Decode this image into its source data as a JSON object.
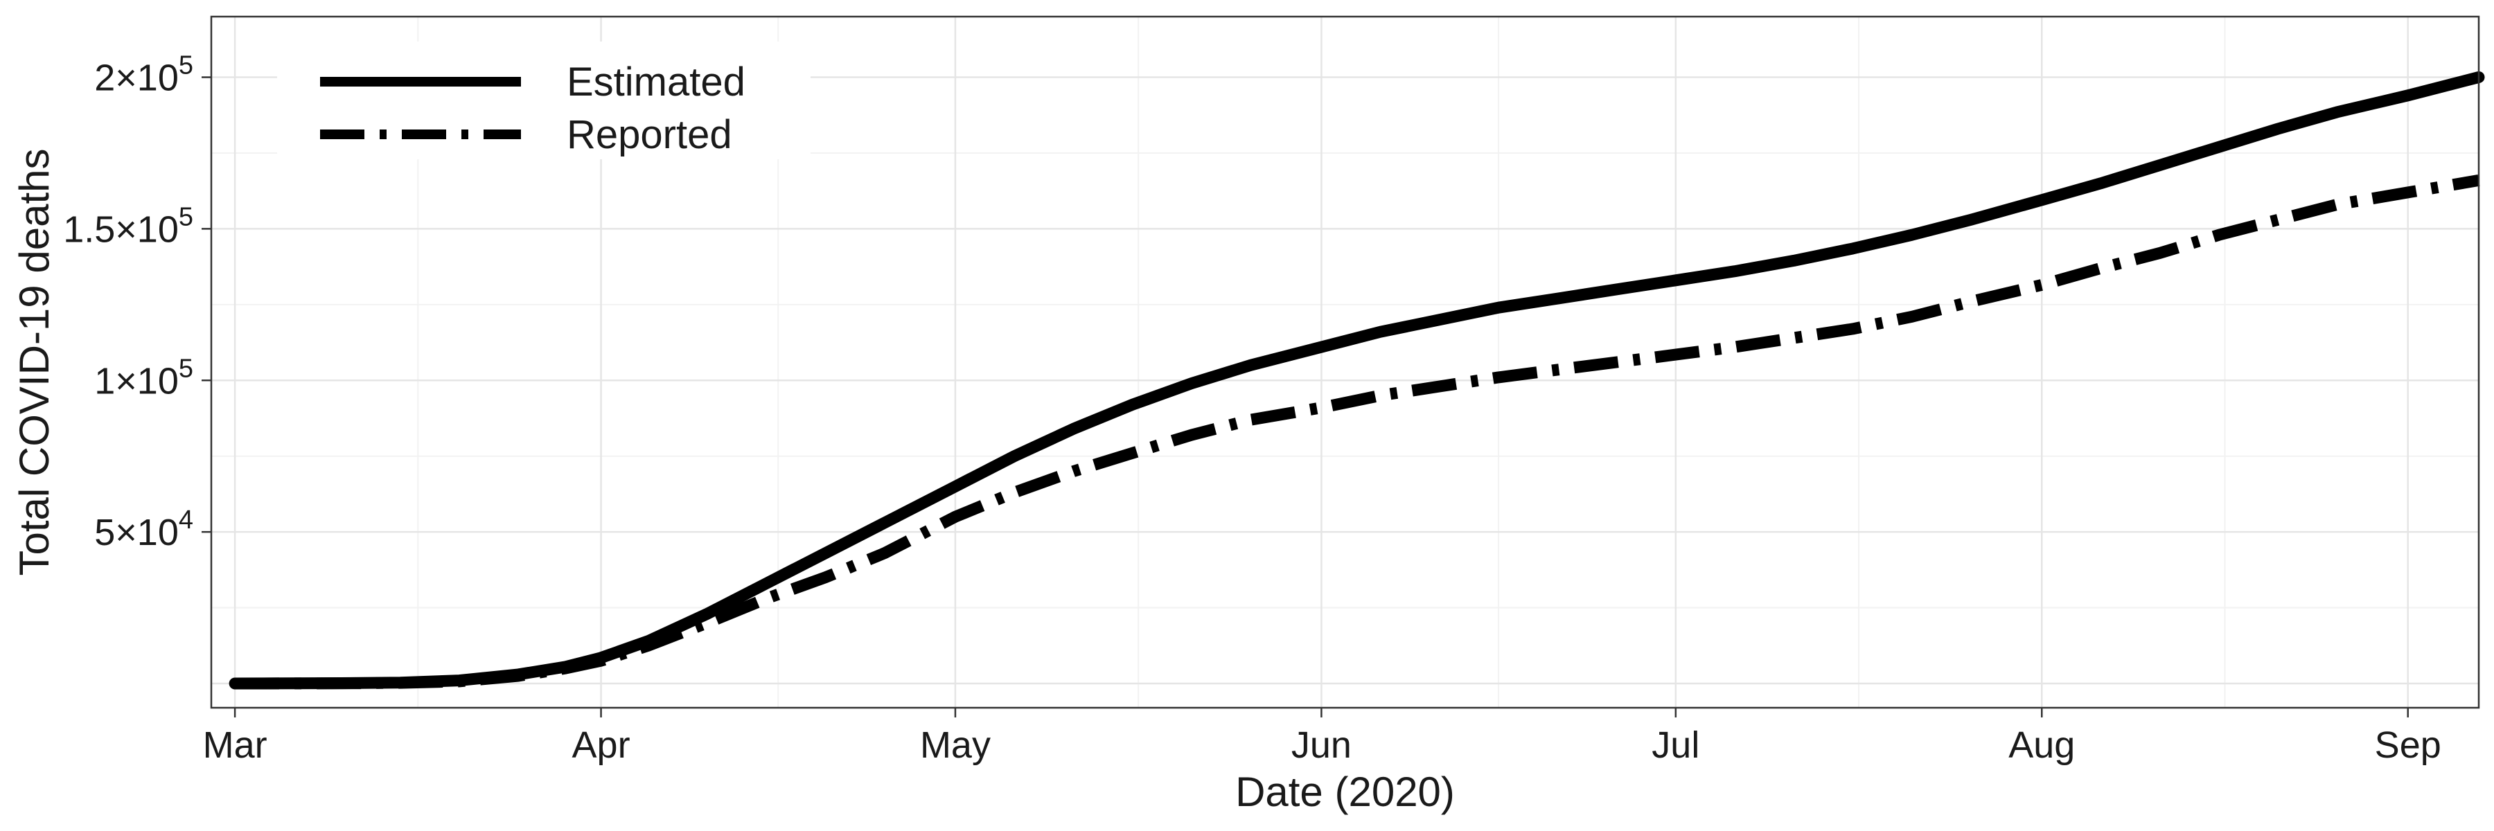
{
  "chart_data": {
    "type": "line",
    "title": "",
    "xlabel": "Date (2020)",
    "ylabel": "Total COVID-19 deaths",
    "x_ticks": [
      {
        "date": "2020-03-01",
        "label": "Mar"
      },
      {
        "date": "2020-04-01",
        "label": "Apr"
      },
      {
        "date": "2020-05-01",
        "label": "May"
      },
      {
        "date": "2020-06-01",
        "label": "Jun"
      },
      {
        "date": "2020-07-01",
        "label": "Jul"
      },
      {
        "date": "2020-08-01",
        "label": "Aug"
      },
      {
        "date": "2020-09-01",
        "label": "Sep"
      }
    ],
    "y_ticks": [
      {
        "value": 50000,
        "mantissa": "5",
        "exponent": "4"
      },
      {
        "value": 100000,
        "mantissa": "1",
        "exponent": "5"
      },
      {
        "value": 150000,
        "mantissa": "1.5",
        "exponent": "5"
      },
      {
        "value": 200000,
        "mantissa": "2",
        "exponent": "5"
      }
    ],
    "xlim": [
      "2020-02-28",
      "2020-09-07"
    ],
    "ylim": [
      -8000,
      220000
    ],
    "grid": true,
    "legend_position": "top-left",
    "series": [
      {
        "name": "Estimated",
        "line_style": "solid",
        "color": "#000000",
        "points": [
          {
            "date": "2020-03-01",
            "y": 0
          },
          {
            "date": "2020-03-10",
            "y": 100
          },
          {
            "date": "2020-03-15",
            "y": 300
          },
          {
            "date": "2020-03-20",
            "y": 1000
          },
          {
            "date": "2020-03-25",
            "y": 3000
          },
          {
            "date": "2020-03-29",
            "y": 5500
          },
          {
            "date": "2020-04-01",
            "y": 8500
          },
          {
            "date": "2020-04-05",
            "y": 14000
          },
          {
            "date": "2020-04-10",
            "y": 23000
          },
          {
            "date": "2020-04-15",
            "y": 33000
          },
          {
            "date": "2020-04-20",
            "y": 43000
          },
          {
            "date": "2020-04-25",
            "y": 53000
          },
          {
            "date": "2020-05-01",
            "y": 65000
          },
          {
            "date": "2020-05-06",
            "y": 75000
          },
          {
            "date": "2020-05-11",
            "y": 84000
          },
          {
            "date": "2020-05-16",
            "y": 92000
          },
          {
            "date": "2020-05-21",
            "y": 99000
          },
          {
            "date": "2020-05-26",
            "y": 105000
          },
          {
            "date": "2020-06-01",
            "y": 111000
          },
          {
            "date": "2020-06-06",
            "y": 116000
          },
          {
            "date": "2020-06-11",
            "y": 120000
          },
          {
            "date": "2020-06-16",
            "y": 124000
          },
          {
            "date": "2020-06-21",
            "y": 127000
          },
          {
            "date": "2020-06-26",
            "y": 130000
          },
          {
            "date": "2020-07-01",
            "y": 133000
          },
          {
            "date": "2020-07-06",
            "y": 136000
          },
          {
            "date": "2020-07-11",
            "y": 139500
          },
          {
            "date": "2020-07-16",
            "y": 143500
          },
          {
            "date": "2020-07-21",
            "y": 148000
          },
          {
            "date": "2020-07-26",
            "y": 153000
          },
          {
            "date": "2020-08-01",
            "y": 159500
          },
          {
            "date": "2020-08-06",
            "y": 165000
          },
          {
            "date": "2020-08-11",
            "y": 171000
          },
          {
            "date": "2020-08-16",
            "y": 177000
          },
          {
            "date": "2020-08-21",
            "y": 183000
          },
          {
            "date": "2020-08-26",
            "y": 188500
          },
          {
            "date": "2020-09-01",
            "y": 194000
          },
          {
            "date": "2020-09-07",
            "y": 200000
          }
        ]
      },
      {
        "name": "Reported",
        "line_style": "dashdot",
        "color": "#000000",
        "points": [
          {
            "date": "2020-03-01",
            "y": 0
          },
          {
            "date": "2020-03-10",
            "y": 50
          },
          {
            "date": "2020-03-15",
            "y": 200
          },
          {
            "date": "2020-03-20",
            "y": 700
          },
          {
            "date": "2020-03-25",
            "y": 2500
          },
          {
            "date": "2020-03-29",
            "y": 5000
          },
          {
            "date": "2020-04-01",
            "y": 7500
          },
          {
            "date": "2020-04-05",
            "y": 12500
          },
          {
            "date": "2020-04-10",
            "y": 20000
          },
          {
            "date": "2020-04-15",
            "y": 28000
          },
          {
            "date": "2020-04-20",
            "y": 35000
          },
          {
            "date": "2020-04-25",
            "y": 43000
          },
          {
            "date": "2020-05-01",
            "y": 55000
          },
          {
            "date": "2020-05-06",
            "y": 63000
          },
          {
            "date": "2020-05-11",
            "y": 70000
          },
          {
            "date": "2020-05-16",
            "y": 76000
          },
          {
            "date": "2020-05-21",
            "y": 82000
          },
          {
            "date": "2020-05-26",
            "y": 87000
          },
          {
            "date": "2020-06-01",
            "y": 91000
          },
          {
            "date": "2020-06-06",
            "y": 95000
          },
          {
            "date": "2020-06-11",
            "y": 98000
          },
          {
            "date": "2020-06-16",
            "y": 101000
          },
          {
            "date": "2020-06-21",
            "y": 103500
          },
          {
            "date": "2020-06-26",
            "y": 106000
          },
          {
            "date": "2020-07-01",
            "y": 108500
          },
          {
            "date": "2020-07-06",
            "y": 111000
          },
          {
            "date": "2020-07-11",
            "y": 114000
          },
          {
            "date": "2020-07-16",
            "y": 117000
          },
          {
            "date": "2020-07-21",
            "y": 121000
          },
          {
            "date": "2020-07-26",
            "y": 126000
          },
          {
            "date": "2020-08-01",
            "y": 131500
          },
          {
            "date": "2020-08-06",
            "y": 137000
          },
          {
            "date": "2020-08-11",
            "y": 142000
          },
          {
            "date": "2020-08-16",
            "y": 148000
          },
          {
            "date": "2020-08-21",
            "y": 153000
          },
          {
            "date": "2020-08-26",
            "y": 158000
          },
          {
            "date": "2020-09-01",
            "y": 162000
          },
          {
            "date": "2020-09-07",
            "y": 166000
          }
        ]
      }
    ]
  }
}
